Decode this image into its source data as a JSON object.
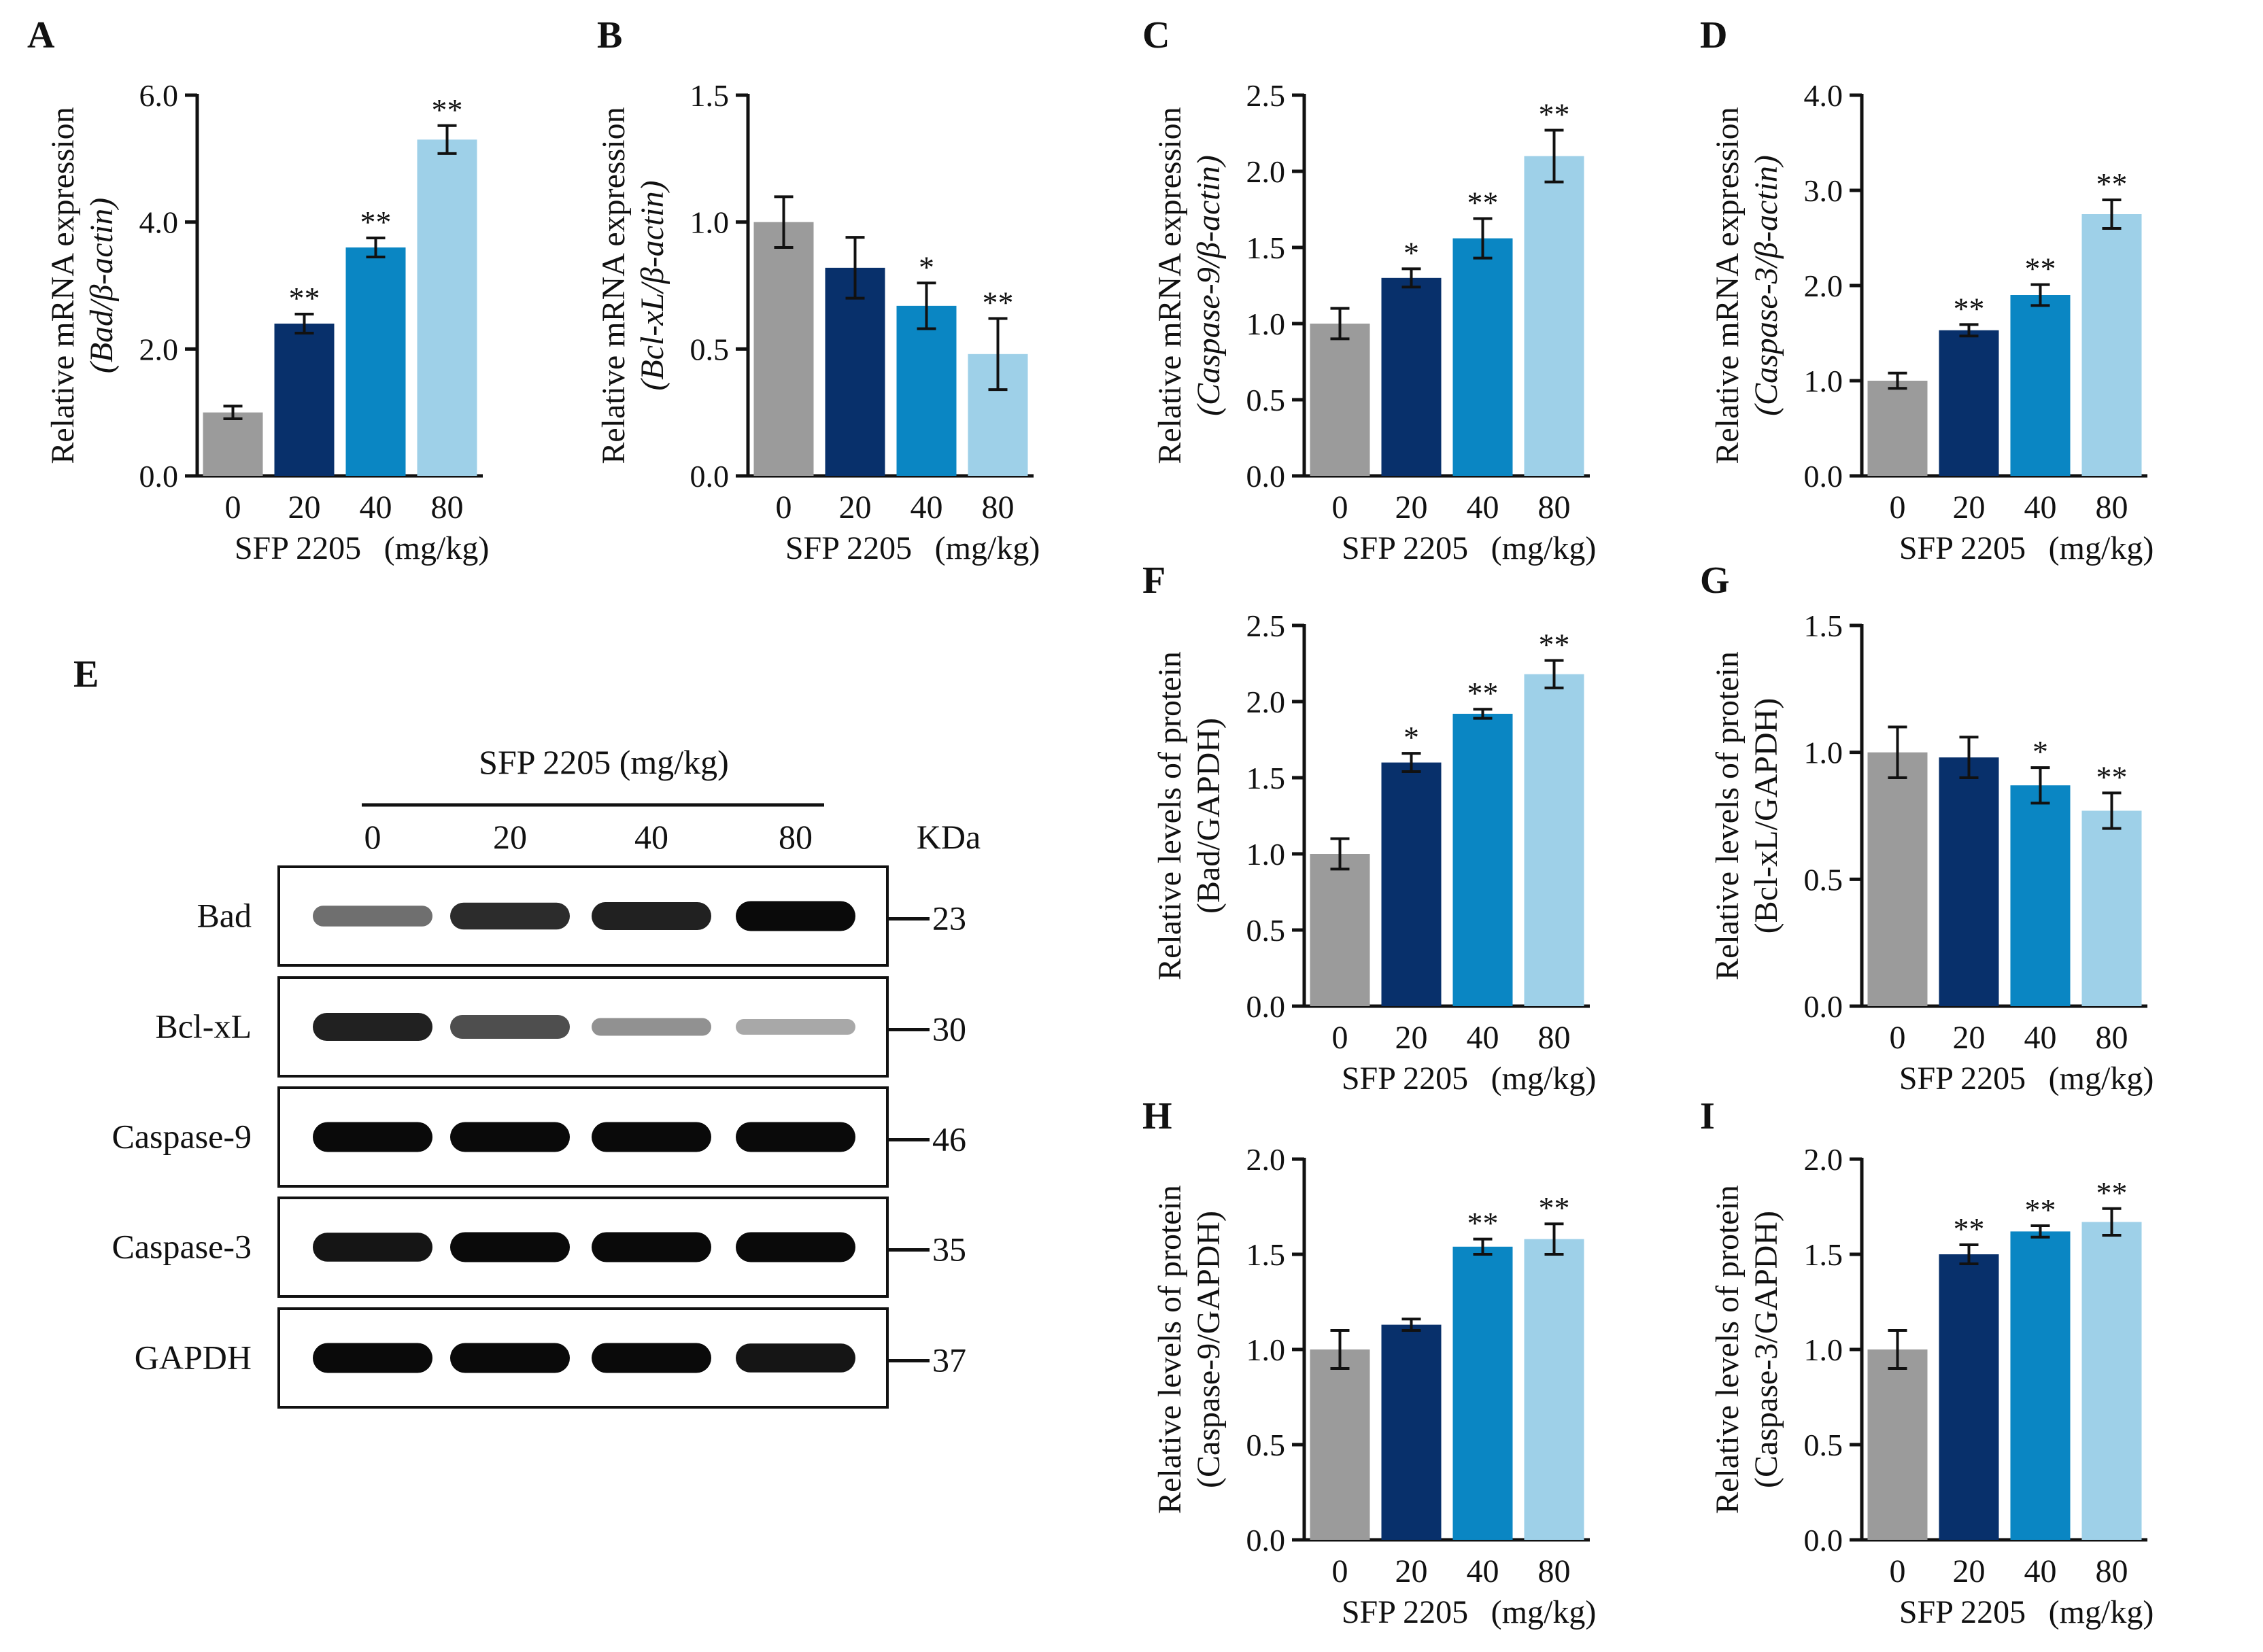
{
  "colors": {
    "g0": "#9B9B9B",
    "g20": "#08306B",
    "g40": "#0A86C3",
    "g80": "#9ED0E8",
    "axis": "#111111"
  },
  "common": {
    "categories": [
      "0",
      "20",
      "40",
      "80"
    ],
    "xlabel_main": "SFP 2205",
    "xlabel_unit": "(mg/kg)"
  },
  "chart_data": [
    {
      "id": "A",
      "type": "bar",
      "title": "",
      "ylabel_line1": "Relative mRNA expression",
      "ylabel_line2": "(Bad/β-actin)",
      "categories": [
        "0",
        "20",
        "40",
        "80"
      ],
      "values": [
        1.0,
        2.4,
        3.6,
        5.3
      ],
      "errors": [
        0.1,
        0.15,
        0.15,
        0.22
      ],
      "significance": [
        "",
        "**",
        "**",
        "**"
      ],
      "ylim": [
        0,
        6
      ],
      "yticks": [
        "0.0",
        "2.0",
        "4.0",
        "6.0"
      ]
    },
    {
      "id": "B",
      "type": "bar",
      "title": "",
      "ylabel_line1": "Relative mRNA expression",
      "ylabel_line2": "(Bcl-xL/β-actin)",
      "categories": [
        "0",
        "20",
        "40",
        "80"
      ],
      "values": [
        1.0,
        0.82,
        0.67,
        0.48
      ],
      "errors": [
        0.1,
        0.12,
        0.09,
        0.14
      ],
      "significance": [
        "",
        "",
        "*",
        "**"
      ],
      "ylim": [
        0,
        1.5
      ],
      "yticks": [
        "0.0",
        "0.5",
        "1.0",
        "1.5"
      ]
    },
    {
      "id": "C",
      "type": "bar",
      "title": "",
      "ylabel_line1": "Relative mRNA expression",
      "ylabel_line2": "(Caspase-9/β-actin)",
      "categories": [
        "0",
        "20",
        "40",
        "80"
      ],
      "values": [
        1.0,
        1.3,
        1.56,
        2.1
      ],
      "errors": [
        0.1,
        0.06,
        0.13,
        0.17
      ],
      "significance": [
        "",
        "*",
        "**",
        "**"
      ],
      "ylim": [
        0,
        2.5
      ],
      "yticks": [
        "0.0",
        "0.5",
        "1.0",
        "1.5",
        "2.0",
        "2.5"
      ]
    },
    {
      "id": "D",
      "type": "bar",
      "title": "",
      "ylabel_line1": "Relative mRNA expression",
      "ylabel_line2": "(Caspase-3/β-actin)",
      "categories": [
        "0",
        "20",
        "40",
        "80"
      ],
      "values": [
        1.0,
        1.53,
        1.9,
        2.75
      ],
      "errors": [
        0.08,
        0.06,
        0.11,
        0.15
      ],
      "significance": [
        "",
        "**",
        "**",
        "**"
      ],
      "ylim": [
        0,
        4
      ],
      "yticks": [
        "0.0",
        "1.0",
        "2.0",
        "3.0",
        "4.0"
      ]
    },
    {
      "id": "F",
      "type": "bar",
      "title": "",
      "ylabel_line1": "Relative levels of protein",
      "ylabel_line2": "(Bad/GAPDH)",
      "categories": [
        "0",
        "20",
        "40",
        "80"
      ],
      "values": [
        1.0,
        1.6,
        1.92,
        2.18
      ],
      "errors": [
        0.1,
        0.06,
        0.03,
        0.09
      ],
      "significance": [
        "",
        "*",
        "**",
        "**"
      ],
      "ylim": [
        0,
        2.5
      ],
      "yticks": [
        "0.0",
        "0.5",
        "1.0",
        "1.5",
        "2.0",
        "2.5"
      ]
    },
    {
      "id": "G",
      "type": "bar",
      "title": "",
      "ylabel_line1": "Relative levels of protein",
      "ylabel_line2": "(Bcl-xL/GAPDH)",
      "categories": [
        "0",
        "20",
        "40",
        "80"
      ],
      "values": [
        1.0,
        0.98,
        0.87,
        0.77
      ],
      "errors": [
        0.1,
        0.08,
        0.07,
        0.07
      ],
      "significance": [
        "",
        "",
        "*",
        "**"
      ],
      "ylim": [
        0,
        1.5
      ],
      "yticks": [
        "0.0",
        "0.5",
        "1.0",
        "1.5"
      ]
    },
    {
      "id": "H",
      "type": "bar",
      "title": "",
      "ylabel_line1": "Relative levels of protein",
      "ylabel_line2": "(Caspase-9/GAPDH)",
      "categories": [
        "0",
        "20",
        "40",
        "80"
      ],
      "values": [
        1.0,
        1.13,
        1.54,
        1.58
      ],
      "errors": [
        0.1,
        0.03,
        0.04,
        0.08
      ],
      "significance": [
        "",
        "",
        "**",
        "**"
      ],
      "ylim": [
        0,
        2.0
      ],
      "yticks": [
        "0.0",
        "0.5",
        "1.0",
        "1.5",
        "2.0"
      ]
    },
    {
      "id": "I",
      "type": "bar",
      "title": "",
      "ylabel_line1": "Relative levels of protein",
      "ylabel_line2": "(Caspase-3/GAPDH)",
      "categories": [
        "0",
        "20",
        "40",
        "80"
      ],
      "values": [
        1.0,
        1.5,
        1.62,
        1.67
      ],
      "errors": [
        0.1,
        0.05,
        0.03,
        0.07
      ],
      "significance": [
        "",
        "**",
        "**",
        "**"
      ],
      "ylim": [
        0,
        2.0
      ],
      "yticks": [
        "0.0",
        "0.5",
        "1.0",
        "1.5",
        "2.0"
      ]
    }
  ],
  "blot": {
    "panel_label": "E",
    "header": "SFP 2205 (mg/kg)",
    "lanes": [
      "0",
      "20",
      "40",
      "80"
    ],
    "kda_label": "KDa",
    "rows": [
      {
        "name": "Bad",
        "kda": "23",
        "intensity": [
          0.55,
          0.85,
          0.9,
          1.0
        ]
      },
      {
        "name": "Bcl-xL",
        "kda": "30",
        "intensity": [
          0.9,
          0.7,
          0.4,
          0.3
        ]
      },
      {
        "name": "Caspase-9",
        "kda": "46",
        "intensity": [
          1.0,
          1.0,
          1.0,
          1.0
        ]
      },
      {
        "name": "Caspase-3",
        "kda": "35",
        "intensity": [
          0.95,
          1.0,
          1.0,
          1.0
        ]
      },
      {
        "name": "GAPDH",
        "kda": "37",
        "intensity": [
          1.0,
          1.0,
          1.0,
          0.95
        ]
      }
    ]
  }
}
